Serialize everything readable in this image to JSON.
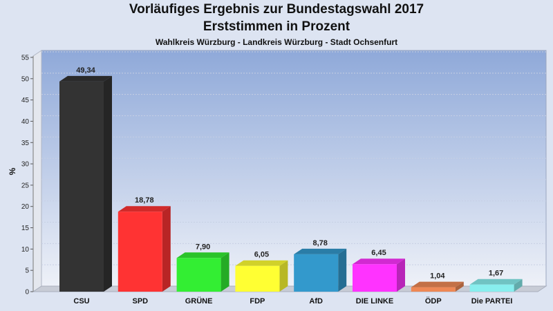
{
  "chart_data": {
    "type": "bar",
    "title": "Vorläufiges Ergebnis zur Bundestagswahl 2017",
    "subtitle": "Erststimmen in Prozent",
    "subsubtitle": "Wahlkreis Würzburg - Landkreis Würzburg - Stadt Ochsenfurt",
    "ylabel": "%",
    "ylim": [
      0,
      55
    ],
    "yticks": [
      0,
      5,
      10,
      15,
      20,
      25,
      30,
      35,
      40,
      45,
      50,
      55
    ],
    "grid": true,
    "categories": [
      "CSU",
      "SPD",
      "GRÜNE",
      "FDP",
      "AfD",
      "DIE LINKE",
      "ÖDP",
      "Die PARTEI"
    ],
    "values": [
      49.34,
      18.78,
      7.9,
      6.05,
      8.78,
      6.45,
      1.04,
      1.67
    ],
    "value_labels": [
      "49,34",
      "18,78",
      "7,90",
      "6,05",
      "8,78",
      "6,45",
      "1,04",
      "1,67"
    ],
    "colors": [
      "#333333",
      "#ff3333",
      "#33ee33",
      "#ffff33",
      "#3399cc",
      "#ff33ff",
      "#ee8855",
      "#88eeee"
    ]
  }
}
